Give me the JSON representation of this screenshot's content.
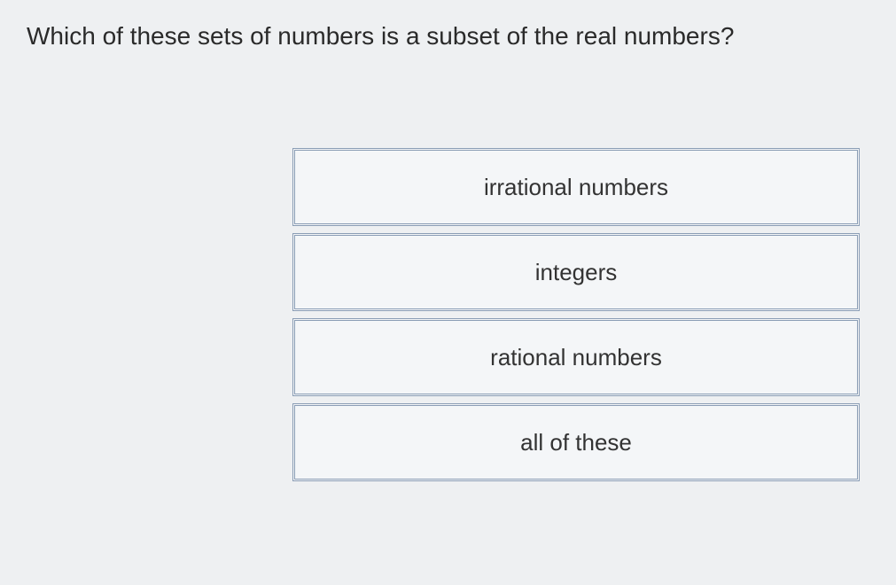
{
  "question": {
    "text": "Which of these sets of numbers is a subset of the real numbers?"
  },
  "options": [
    {
      "label": "irrational numbers"
    },
    {
      "label": "integers"
    },
    {
      "label": "rational numbers"
    },
    {
      "label": "all of these"
    }
  ],
  "styling": {
    "background_color": "#eef0f2",
    "question_fontsize": 28,
    "question_color": "#2a2a2a",
    "option_background": "#f4f6f8",
    "option_border_color": "#8a9db5",
    "option_fontsize": 26,
    "option_text_color": "#333333",
    "option_width": 640,
    "option_height": 88
  }
}
